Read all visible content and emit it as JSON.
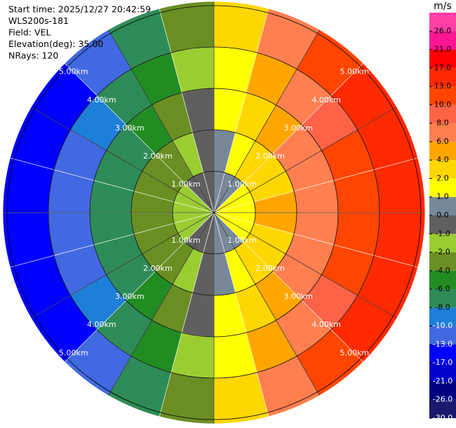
{
  "chart_data": {
    "type": "ppi",
    "header": [
      "Start time: 2025/12/27 20:42:59",
      "WLS200s-181",
      "Field: VEL",
      "Elevation(deg): 35.00",
      "NRays: 120"
    ],
    "colorbar_title": "m/s",
    "colorbar_ticks": [
      {
        "value": -30,
        "label": "-30.0"
      },
      {
        "value": -26,
        "label": "-26.0"
      },
      {
        "value": -21,
        "label": "-21.0"
      },
      {
        "value": -17,
        "label": "-17.0"
      },
      {
        "value": -13,
        "label": "-13.0"
      },
      {
        "value": -10,
        "label": "-10.0"
      },
      {
        "value": -8,
        "label": "-8.0"
      },
      {
        "value": -6,
        "label": "-6.0"
      },
      {
        "value": -4,
        "label": "-4.0"
      },
      {
        "value": -2,
        "label": "-2.0"
      },
      {
        "value": -1,
        "label": "-1.0"
      },
      {
        "value": 0,
        "label": "0.0"
      },
      {
        "value": 1,
        "label": "1.0"
      },
      {
        "value": 2,
        "label": "2.0"
      },
      {
        "value": 4,
        "label": "4.0"
      },
      {
        "value": 6,
        "label": "6.0"
      },
      {
        "value": 8,
        "label": "8.0"
      },
      {
        "value": 10,
        "label": "10.0"
      },
      {
        "value": 13,
        "label": "13.0"
      },
      {
        "value": 17,
        "label": "17.0"
      },
      {
        "value": 21,
        "label": "21.0"
      },
      {
        "value": 26,
        "label": "26.0"
      }
    ],
    "colorbar_colors": [
      "#191970",
      "#000080",
      "#0000cd",
      "#0000ff",
      "#4169e1",
      "#1e7fd8",
      "#2e8b57",
      "#228b22",
      "#6b8e23",
      "#9acd32",
      "#5f5f5f",
      "#778899",
      "#ffff00",
      "#ffd700",
      "#ffa500",
      "#ff7f50",
      "#ff6347",
      "#ff4500",
      "#ff2a00",
      "#ff0000",
      "#ff1493",
      "#ff3fa6"
    ],
    "range_rings": [
      {
        "value": 1,
        "label": "1.00km"
      },
      {
        "value": 2,
        "label": "2.00km"
      },
      {
        "value": 3,
        "label": "3.00km"
      },
      {
        "value": 4,
        "label": "4.00km"
      },
      {
        "value": 5,
        "label": "5.00km"
      }
    ],
    "range_bins": [
      0,
      1,
      2,
      3,
      4,
      5.1
    ],
    "azimuths": [
      0,
      15,
      30,
      45,
      60,
      75,
      90,
      105,
      120,
      135,
      150,
      165,
      180,
      195,
      210,
      225,
      240,
      255,
      270,
      285,
      300,
      315,
      330,
      345
    ],
    "values": [
      [
        0.2,
        0.5,
        1.0,
        1.6,
        2.2
      ],
      [
        0.6,
        1.5,
        3.1,
        4.6,
        6.5
      ],
      [
        0.9,
        2.4,
        4.9,
        7.3,
        10.4
      ],
      [
        1.2,
        3.2,
        6.3,
        9.5,
        13.5
      ],
      [
        1.4,
        3.7,
        7.4,
        11.1,
        15.7
      ],
      [
        1.5,
        4.0,
        7.9,
        11.9,
        16.9
      ],
      [
        1.5,
        4.0,
        7.9,
        11.9,
        16.9
      ],
      [
        1.4,
        3.7,
        7.4,
        11.1,
        15.7
      ],
      [
        1.2,
        3.2,
        6.3,
        9.5,
        13.5
      ],
      [
        0.9,
        2.4,
        4.9,
        7.3,
        10.4
      ],
      [
        0.6,
        1.5,
        3.1,
        4.6,
        6.5
      ],
      [
        0.2,
        0.5,
        1.0,
        1.6,
        2.2
      ],
      [
        -0.2,
        -0.5,
        -1.0,
        -1.6,
        -2.2
      ],
      [
        -0.6,
        -1.5,
        -3.1,
        -4.6,
        -6.5
      ],
      [
        -0.9,
        -2.4,
        -4.9,
        -7.3,
        -10.4
      ],
      [
        -1.2,
        -3.2,
        -6.3,
        -9.5,
        -13.5
      ],
      [
        -1.4,
        -3.7,
        -7.4,
        -11.1,
        -15.7
      ],
      [
        -1.5,
        -4.0,
        -7.9,
        -11.9,
        -16.9
      ],
      [
        -1.5,
        -4.0,
        -7.9,
        -11.9,
        -16.9
      ],
      [
        -1.4,
        -3.7,
        -7.4,
        -11.1,
        -15.7
      ],
      [
        -1.2,
        -3.2,
        -6.3,
        -9.5,
        -13.5
      ],
      [
        -0.9,
        -2.4,
        -4.9,
        -7.3,
        -10.4
      ],
      [
        -0.6,
        -1.5,
        -3.1,
        -4.6,
        -6.5
      ],
      [
        -0.2,
        -0.5,
        -1.0,
        -1.6,
        -2.2
      ]
    ]
  }
}
